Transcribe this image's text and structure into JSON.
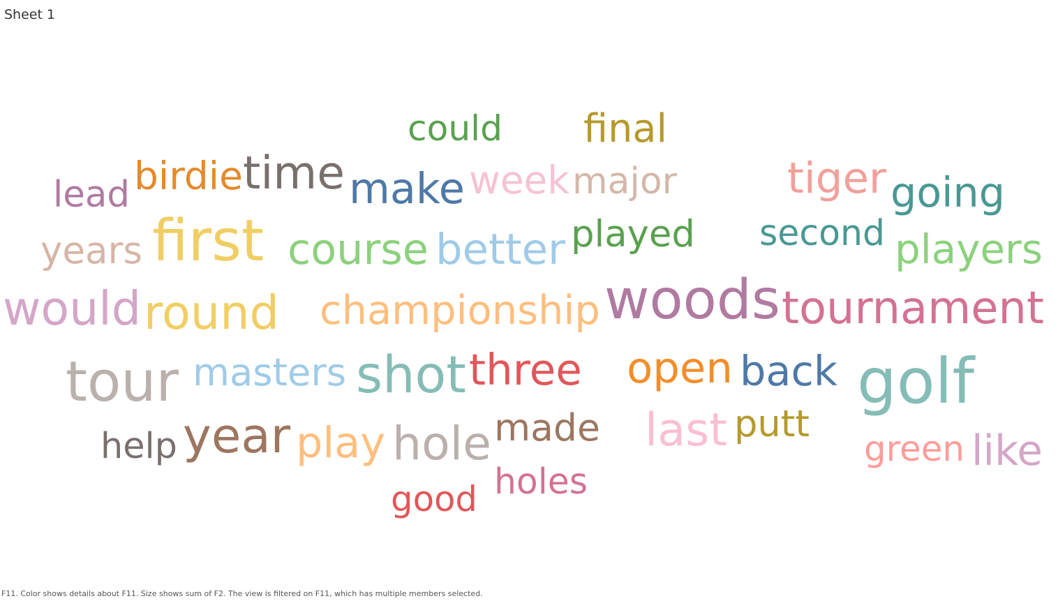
{
  "sheet": {
    "title": "Sheet 1"
  },
  "footer": {
    "caption": "F11.  Color shows details about F11.  Size shows sum of F2. The view is filtered on F11, which has multiple members selected."
  },
  "chart_data": {
    "type": "word-cloud",
    "color_field": "F11",
    "size_field": "F2",
    "words": [
      {
        "text": "could",
        "color": "#59a14f"
      },
      {
        "text": "final",
        "color": "#b6992d"
      },
      {
        "text": "lead",
        "color": "#b07aa1"
      },
      {
        "text": "birdie",
        "color": "#e48a2c"
      },
      {
        "text": "time",
        "color": "#79706e"
      },
      {
        "text": "make",
        "color": "#4e79a7"
      },
      {
        "text": "week",
        "color": "#f5c3d3"
      },
      {
        "text": "major",
        "color": "#d4b7a9"
      },
      {
        "text": "tiger",
        "color": "#f1a09b"
      },
      {
        "text": "going",
        "color": "#499894"
      },
      {
        "text": "years",
        "color": "#d7b5a6"
      },
      {
        "text": "first",
        "color": "#f1ce63"
      },
      {
        "text": "course",
        "color": "#8cd17d"
      },
      {
        "text": "better",
        "color": "#a0cbe8"
      },
      {
        "text": "played",
        "color": "#59a14f"
      },
      {
        "text": "second",
        "color": "#499894"
      },
      {
        "text": "players",
        "color": "#8cd17d"
      },
      {
        "text": "would",
        "color": "#d4a6c8"
      },
      {
        "text": "round",
        "color": "#f1ce63"
      },
      {
        "text": "championship",
        "color": "#ffbe7d"
      },
      {
        "text": "woods",
        "color": "#b07aa1"
      },
      {
        "text": "tournament",
        "color": "#d37295"
      },
      {
        "text": "tour",
        "color": "#bab0ac"
      },
      {
        "text": "masters",
        "color": "#a0cbe8"
      },
      {
        "text": "shot",
        "color": "#86bcb6"
      },
      {
        "text": "three",
        "color": "#e15759"
      },
      {
        "text": "open",
        "color": "#f28e2b"
      },
      {
        "text": "back",
        "color": "#4e79a7"
      },
      {
        "text": "golf",
        "color": "#86bcb6"
      },
      {
        "text": "help",
        "color": "#79706e"
      },
      {
        "text": "year",
        "color": "#9d7660"
      },
      {
        "text": "play",
        "color": "#ffbe7d"
      },
      {
        "text": "hole",
        "color": "#bab0ac"
      },
      {
        "text": "made",
        "color": "#9d7660"
      },
      {
        "text": "last",
        "color": "#fabfd2"
      },
      {
        "text": "putt",
        "color": "#b6992d"
      },
      {
        "text": "green",
        "color": "#ff9d9a"
      },
      {
        "text": "like",
        "color": "#d4a6c8"
      },
      {
        "text": "holes",
        "color": "#d37295"
      },
      {
        "text": "good",
        "color": "#e15759"
      }
    ]
  }
}
